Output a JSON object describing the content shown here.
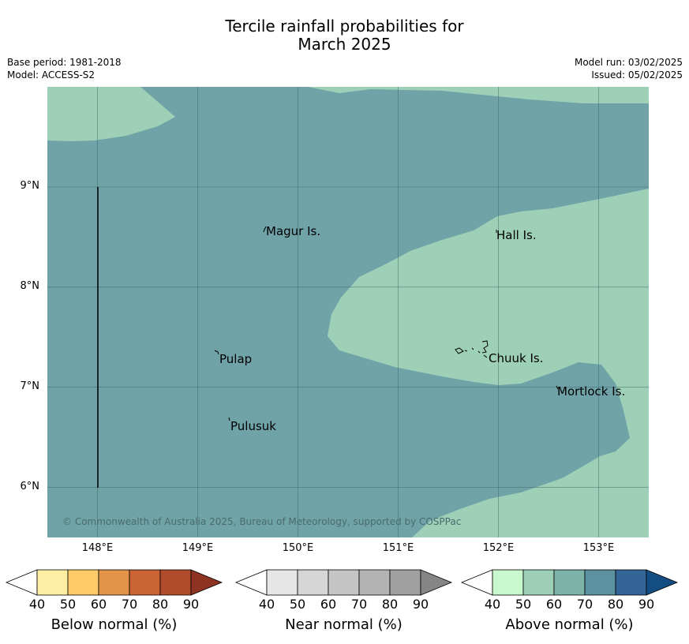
{
  "title_line1": "Tercile rainfall probabilities for",
  "title_line2": "March 2025",
  "base_period": "Base period: 1981-2018",
  "model": "Model: ACCESS-S2",
  "model_run": "Model run: 03/02/2025",
  "issued": "Issued: 05/02/2025",
  "map": {
    "lon_range": [
      147.5,
      153.5
    ],
    "lat_range": [
      5.5,
      10.0
    ],
    "x_ticks": [
      "148°E",
      "149°E",
      "150°E",
      "151°E",
      "152°E",
      "153°E"
    ],
    "y_ticks": [
      "9°N",
      "8°N",
      "7°N",
      "6°N"
    ],
    "places": [
      {
        "name": "Magur Is."
      },
      {
        "name": "Hall Is."
      },
      {
        "name": "Pulap"
      },
      {
        "name": "Chuuk Is."
      },
      {
        "name": "Mortlock Is."
      },
      {
        "name": "Pulusuk"
      }
    ],
    "copyright": "© Commonwealth of Australia 2025, Bureau of Meteorology, supported by COSPPac"
  },
  "colorbars": [
    {
      "label": "Below normal (%)",
      "ticks": [
        "40",
        "50",
        "60",
        "70",
        "80",
        "90"
      ],
      "colors": [
        "#fdeea4",
        "#fecb68",
        "#e2954a",
        "#cb6434",
        "#b04c2b",
        "#8c3322"
      ]
    },
    {
      "label": "Near normal (%)",
      "ticks": [
        "40",
        "50",
        "60",
        "70",
        "80",
        "90"
      ],
      "colors": [
        "#e6e6e6",
        "#d6d6d6",
        "#c5c5c5",
        "#b3b3b3",
        "#a0a0a0",
        "#868686"
      ]
    },
    {
      "label": "Above normal (%)",
      "ticks": [
        "40",
        "50",
        "60",
        "70",
        "80",
        "90"
      ],
      "colors": [
        "#c9f8cf",
        "#9dd0b7",
        "#7db3a9",
        "#5b91a1",
        "#336596",
        "#134d82"
      ]
    }
  ],
  "colors": {
    "above_70": "#6fa3a8",
    "above_60": "#9dd0b7",
    "grid": "#3b6466"
  }
}
